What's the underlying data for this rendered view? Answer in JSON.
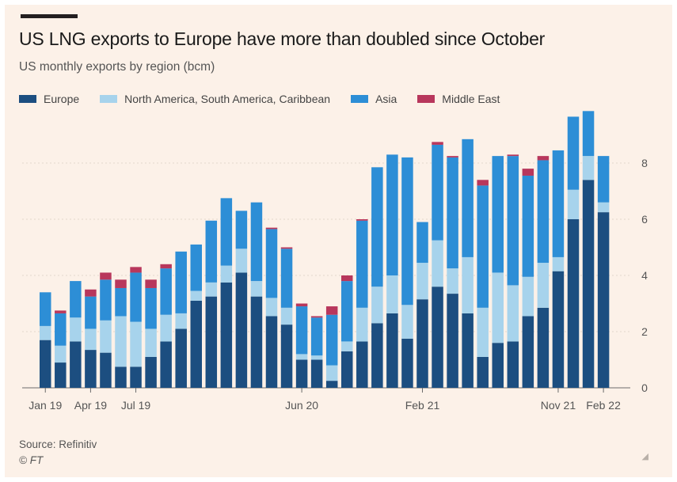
{
  "header": {
    "title": "US LNG exports to Europe have more than doubled since October",
    "subtitle": "US monthly exports by region (bcm)"
  },
  "footer": {
    "source": "Source: Refinitiv",
    "credit": "© FT"
  },
  "colors": {
    "background": "#fcf1e8",
    "Europe": "#1c4e80",
    "Americas": "#a7d3ec",
    "Asia": "#2d8ed6",
    "Middle East": "#b8375c"
  },
  "chart_data": {
    "type": "bar",
    "stacked": true,
    "title": "US LNG exports to Europe have more than doubled since October",
    "subtitle": "US monthly exports by region (bcm)",
    "xlabel": "",
    "ylabel": "",
    "ylim": [
      0,
      10
    ],
    "yticks": [
      0,
      2,
      4,
      6,
      8
    ],
    "grid": true,
    "legend_position": "top",
    "categories": [
      "2019-01",
      "2019-02",
      "2019-03",
      "2019-04",
      "2019-05",
      "2019-06",
      "2019-07",
      "2019-08",
      "2019-09",
      "2019-10",
      "2019-11",
      "2019-12",
      "2020-01",
      "2020-02",
      "2020-03",
      "2020-04",
      "2020-05",
      "2020-06",
      "2020-07",
      "2020-08",
      "2020-09",
      "2020-10",
      "2020-11",
      "2020-12",
      "2021-01",
      "2021-02",
      "2021-03",
      "2021-04",
      "2021-05",
      "2021-06",
      "2021-07",
      "2021-08",
      "2021-09",
      "2021-10",
      "2021-11",
      "2021-12",
      "2022-01",
      "2022-02"
    ],
    "tick_labels": [
      {
        "index": 0,
        "label": "Jan 19"
      },
      {
        "index": 3,
        "label": "Apr 19"
      },
      {
        "index": 6,
        "label": "Jul 19"
      },
      {
        "index": 17,
        "label": "Jun 20"
      },
      {
        "index": 25,
        "label": "Feb 21"
      },
      {
        "index": 34,
        "label": "Nov 21"
      },
      {
        "index": 37,
        "label": "Feb 22"
      }
    ],
    "series": [
      {
        "name": "Europe",
        "values": [
          1.7,
          0.9,
          1.65,
          1.35,
          1.25,
          0.75,
          0.75,
          1.1,
          1.65,
          2.1,
          3.1,
          3.25,
          3.75,
          4.1,
          3.25,
          2.55,
          2.25,
          1.0,
          1.0,
          0.25,
          1.3,
          1.65,
          2.3,
          2.65,
          1.75,
          3.15,
          3.6,
          3.35,
          2.65,
          1.1,
          1.6,
          1.65,
          2.55,
          2.85,
          4.15,
          6.0,
          7.4,
          6.25
        ]
      },
      {
        "name": "North America, South America, Caribbean",
        "values": [
          0.5,
          0.6,
          0.85,
          0.75,
          1.15,
          1.8,
          1.6,
          1.0,
          0.95,
          0.55,
          0.35,
          0.5,
          0.6,
          0.85,
          0.55,
          0.65,
          0.6,
          0.2,
          0.15,
          0.55,
          0.35,
          1.2,
          1.3,
          1.35,
          1.2,
          1.3,
          1.65,
          0.9,
          2.0,
          1.75,
          2.5,
          2.0,
          1.4,
          1.6,
          0.5,
          1.05,
          0.85,
          0.35
        ]
      },
      {
        "name": "Asia",
        "values": [
          1.2,
          1.15,
          1.3,
          1.15,
          1.45,
          1.0,
          1.75,
          1.45,
          1.65,
          2.2,
          1.65,
          2.2,
          2.4,
          1.35,
          2.8,
          2.45,
          2.1,
          1.7,
          1.35,
          1.8,
          2.15,
          3.1,
          4.25,
          4.3,
          5.25,
          1.45,
          3.4,
          3.95,
          4.2,
          4.35,
          4.15,
          4.6,
          3.6,
          3.65,
          3.8,
          2.6,
          1.6,
          1.65
        ]
      },
      {
        "name": "Middle East",
        "values": [
          0,
          0.1,
          0,
          0.25,
          0.25,
          0.3,
          0.2,
          0.3,
          0.15,
          0,
          0,
          0,
          0,
          0,
          0,
          0.05,
          0.05,
          0.1,
          0.05,
          0.3,
          0.2,
          0.05,
          0,
          0,
          0,
          0,
          0.1,
          0.05,
          0,
          0.2,
          0,
          0.05,
          0.25,
          0.15,
          0,
          0,
          0,
          0
        ]
      }
    ]
  }
}
